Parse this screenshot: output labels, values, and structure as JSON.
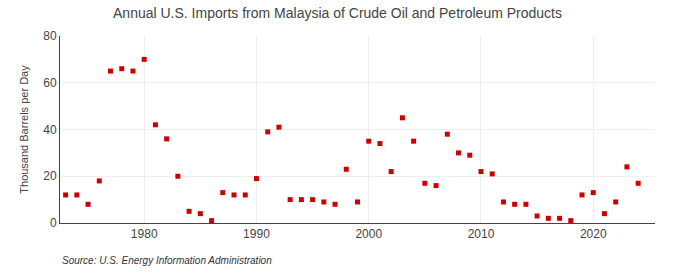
{
  "chart_data": {
    "type": "scatter",
    "title": "Annual U.S. Imports from Malaysia of Crude Oil and Petroleum Products",
    "ylabel": "Thousand Barrels per Day",
    "annotations": [
      "Source: U.S. Energy Information Administration"
    ],
    "color": "#cc0000",
    "marker": "square",
    "x": [
      1973,
      1974,
      1975,
      1976,
      1977,
      1978,
      1979,
      1980,
      1981,
      1982,
      1983,
      1984,
      1985,
      1986,
      1987,
      1988,
      1989,
      1990,
      1991,
      1992,
      1993,
      1994,
      1995,
      1996,
      1997,
      1998,
      1999,
      2000,
      2001,
      2002,
      2003,
      2004,
      2005,
      2006,
      2007,
      2008,
      2009,
      2010,
      2011,
      2012,
      2013,
      2014,
      2015,
      2016,
      2017,
      2018,
      2019,
      2020,
      2021,
      2022,
      2023,
      2024
    ],
    "values": [
      12,
      12,
      8,
      18,
      65,
      66,
      65,
      70,
      42,
      36,
      20,
      5,
      4,
      1,
      13,
      12,
      12,
      19,
      39,
      41,
      10,
      10,
      10,
      9,
      8,
      23,
      9,
      35,
      34,
      22,
      45,
      35,
      17,
      16,
      38,
      30,
      29,
      22,
      21,
      9,
      8,
      8,
      3,
      2,
      2,
      1,
      12,
      13,
      4,
      9,
      24,
      17
    ],
    "xlim": [
      1972.5,
      2025.5
    ],
    "xticks": [
      1980,
      1990,
      2000,
      2010,
      2020
    ],
    "ylim": [
      0,
      80
    ],
    "yticks": [
      0,
      20,
      40,
      60,
      80
    ],
    "grid": true
  }
}
